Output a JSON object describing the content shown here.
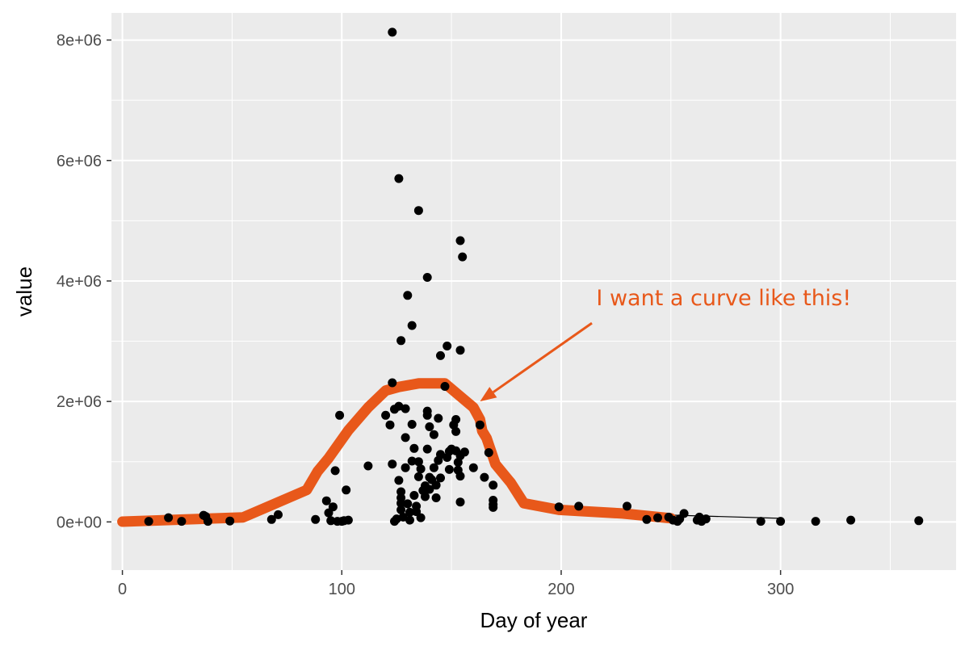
{
  "chart_data": {
    "type": "scatter",
    "title": "",
    "xlabel": "Day of year",
    "ylabel": "value",
    "xlim": [
      -5,
      380
    ],
    "ylim": [
      -800000,
      8450000
    ],
    "x_ticks": [
      0,
      100,
      200,
      300
    ],
    "x_tick_labels": [
      "0",
      "100",
      "200",
      "300"
    ],
    "y_ticks": [
      0,
      2000000,
      4000000,
      6000000,
      8000000
    ],
    "y_tick_labels": [
      "0e+00",
      "2e+06",
      "4e+06",
      "6e+06",
      "8e+06"
    ],
    "grid": true,
    "panel_color": "#ebebeb",
    "point_color": "#000000",
    "points": [
      [
        12,
        10000
      ],
      [
        21,
        70000
      ],
      [
        27,
        10000
      ],
      [
        37,
        110000
      ],
      [
        38,
        90000
      ],
      [
        39,
        10000
      ],
      [
        49,
        15000
      ],
      [
        68,
        40000
      ],
      [
        71,
        120000
      ],
      [
        88,
        40000
      ],
      [
        93,
        350000
      ],
      [
        94,
        150000
      ],
      [
        95,
        20000
      ],
      [
        96,
        250000
      ],
      [
        97,
        850000
      ],
      [
        98,
        10000
      ],
      [
        99,
        1770000
      ],
      [
        100,
        10000
      ],
      [
        101,
        20000
      ],
      [
        102,
        530000
      ],
      [
        103,
        30000
      ],
      [
        112,
        930000
      ],
      [
        120,
        1770000
      ],
      [
        122,
        1610000
      ],
      [
        123,
        8130000
      ],
      [
        123,
        2310000
      ],
      [
        123,
        960000
      ],
      [
        124,
        1870000
      ],
      [
        124,
        10000
      ],
      [
        125,
        50000
      ],
      [
        126,
        690000
      ],
      [
        126,
        1920000
      ],
      [
        126,
        5700000
      ],
      [
        127,
        3010000
      ],
      [
        127,
        500000
      ],
      [
        127,
        400000
      ],
      [
        127,
        310000
      ],
      [
        127,
        200000
      ],
      [
        128,
        80000
      ],
      [
        129,
        1880000
      ],
      [
        129,
        1400000
      ],
      [
        129,
        900000
      ],
      [
        130,
        3760000
      ],
      [
        130,
        300000
      ],
      [
        131,
        160000
      ],
      [
        131,
        30000
      ],
      [
        132,
        1010000
      ],
      [
        132,
        3260000
      ],
      [
        132,
        1620000
      ],
      [
        133,
        440000
      ],
      [
        133,
        1220000
      ],
      [
        134,
        260000
      ],
      [
        134,
        170000
      ],
      [
        135,
        1000000
      ],
      [
        135,
        5170000
      ],
      [
        135,
        750000
      ],
      [
        136,
        880000
      ],
      [
        136,
        70000
      ],
      [
        137,
        520000
      ],
      [
        138,
        600000
      ],
      [
        138,
        420000
      ],
      [
        139,
        1840000
      ],
      [
        139,
        1770000
      ],
      [
        139,
        1210000
      ],
      [
        139,
        4060000
      ],
      [
        140,
        1580000
      ],
      [
        140,
        740000
      ],
      [
        140,
        540000
      ],
      [
        141,
        700000
      ],
      [
        142,
        1450000
      ],
      [
        142,
        900000
      ],
      [
        143,
        610000
      ],
      [
        143,
        400000
      ],
      [
        144,
        1720000
      ],
      [
        144,
        1020000
      ],
      [
        145,
        2760000
      ],
      [
        145,
        1120000
      ],
      [
        145,
        730000
      ],
      [
        147,
        2250000
      ],
      [
        148,
        2920000
      ],
      [
        148,
        1070000
      ],
      [
        149,
        870000
      ],
      [
        149,
        1170000
      ],
      [
        150,
        1210000
      ],
      [
        151,
        1610000
      ],
      [
        152,
        1700000
      ],
      [
        152,
        1500000
      ],
      [
        152,
        1180000
      ],
      [
        153,
        990000
      ],
      [
        153,
        860000
      ],
      [
        154,
        2850000
      ],
      [
        154,
        1100000
      ],
      [
        154,
        760000
      ],
      [
        154,
        330000
      ],
      [
        154,
        4670000
      ],
      [
        155,
        4400000
      ],
      [
        156,
        1160000
      ],
      [
        160,
        900000
      ],
      [
        163,
        1610000
      ],
      [
        165,
        740000
      ],
      [
        167,
        1150000
      ],
      [
        169,
        610000
      ],
      [
        169,
        360000
      ],
      [
        169,
        290000
      ],
      [
        169,
        240000
      ],
      [
        199,
        250000
      ],
      [
        208,
        260000
      ],
      [
        230,
        260000
      ],
      [
        239,
        40000
      ],
      [
        244,
        70000
      ],
      [
        249,
        80000
      ],
      [
        251,
        30000
      ],
      [
        253,
        10000
      ],
      [
        254,
        50000
      ],
      [
        256,
        140000
      ],
      [
        262,
        30000
      ],
      [
        263,
        80000
      ],
      [
        264,
        10000
      ],
      [
        266,
        50000
      ],
      [
        291,
        10000
      ],
      [
        300,
        10000
      ],
      [
        316,
        10000
      ],
      [
        332,
        30000
      ],
      [
        363,
        20000
      ]
    ],
    "highlight_curve": {
      "color": "#e8581a",
      "points": [
        [
          0,
          5000
        ],
        [
          55,
          75000
        ],
        [
          84,
          530000
        ],
        [
          89,
          840000
        ],
        [
          94,
          1060000
        ],
        [
          103,
          1520000
        ],
        [
          112,
          1900000
        ],
        [
          120,
          2180000
        ],
        [
          126,
          2240000
        ],
        [
          135,
          2300000
        ],
        [
          147,
          2300000
        ],
        [
          160,
          1900000
        ],
        [
          163,
          1700000
        ],
        [
          164,
          1510000
        ],
        [
          166,
          1390000
        ],
        [
          170,
          960000
        ],
        [
          177,
          650000
        ],
        [
          183,
          310000
        ],
        [
          199,
          200000
        ],
        [
          228,
          140000
        ],
        [
          250,
          60000
        ]
      ]
    },
    "reference_line": [
      [
        225,
        140000
      ],
      [
        300,
        60000
      ]
    ],
    "annotation": {
      "text": "I want a curve like this!",
      "color": "#e8581a",
      "text_at": [
        216,
        3600000
      ],
      "arrow_from": [
        214,
        3300000
      ],
      "arrow_to": [
        163,
        2000000
      ]
    }
  }
}
